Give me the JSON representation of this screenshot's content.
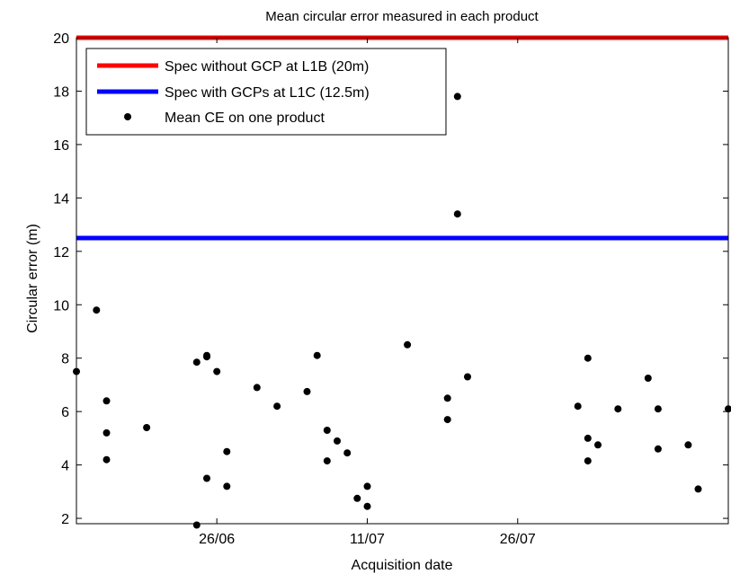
{
  "chart_data": {
    "type": "scatter",
    "title": "Mean circular error measured in each product",
    "xlabel": "Acquisition date",
    "ylabel": "Circular error (m)",
    "ylim": [
      1.8,
      20
    ],
    "xlim": [
      "2015-06-12",
      "2015-08-16"
    ],
    "x_ticks": [
      {
        "x": "2015-06-26",
        "label": "26/06"
      },
      {
        "x": "2015-07-11",
        "label": "11/07"
      },
      {
        "x": "2015-07-26",
        "label": "26/07"
      }
    ],
    "y_ticks": [
      2,
      4,
      6,
      8,
      10,
      12,
      14,
      16,
      18,
      20
    ],
    "grid": false,
    "legend_position": "top-left",
    "reference_lines": [
      {
        "name": "Spec without GCP at L1B (20m)",
        "y": 20,
        "color": "#ff0000"
      },
      {
        "name": "Spec with GCPs at L1C (12.5m)",
        "y": 12.5,
        "color": "#0000ff"
      }
    ],
    "series": [
      {
        "name": "Mean CE on one product",
        "color": "#000000",
        "x": [
          "2015-06-12",
          "2015-06-14",
          "2015-06-15",
          "2015-06-15",
          "2015-06-15",
          "2015-06-19",
          "2015-06-24",
          "2015-06-24",
          "2015-06-25",
          "2015-06-25",
          "2015-06-25",
          "2015-06-26",
          "2015-06-27",
          "2015-06-27",
          "2015-06-30",
          "2015-07-02",
          "2015-07-05",
          "2015-07-06",
          "2015-07-07",
          "2015-07-07",
          "2015-07-08",
          "2015-07-09",
          "2015-07-10",
          "2015-07-11",
          "2015-07-11",
          "2015-07-15",
          "2015-07-19",
          "2015-07-19",
          "2015-07-20",
          "2015-07-20",
          "2015-07-21",
          "2015-08-01",
          "2015-08-02",
          "2015-08-02",
          "2015-08-02",
          "2015-08-03",
          "2015-08-05",
          "2015-08-08",
          "2015-08-09",
          "2015-08-09",
          "2015-08-12",
          "2015-08-13",
          "2015-08-16"
        ],
        "y": [
          7.5,
          9.8,
          6.4,
          5.2,
          4.2,
          5.4,
          7.85,
          1.75,
          8.1,
          8.05,
          3.5,
          7.5,
          4.5,
          3.2,
          6.9,
          6.2,
          6.75,
          8.1,
          5.3,
          4.15,
          4.9,
          4.45,
          2.75,
          3.2,
          2.45,
          8.5,
          6.5,
          5.7,
          17.8,
          13.4,
          7.3,
          6.2,
          8.0,
          5.0,
          4.15,
          4.75,
          6.1,
          7.25,
          6.1,
          4.6,
          4.75,
          3.1,
          6.1
        ]
      }
    ]
  }
}
